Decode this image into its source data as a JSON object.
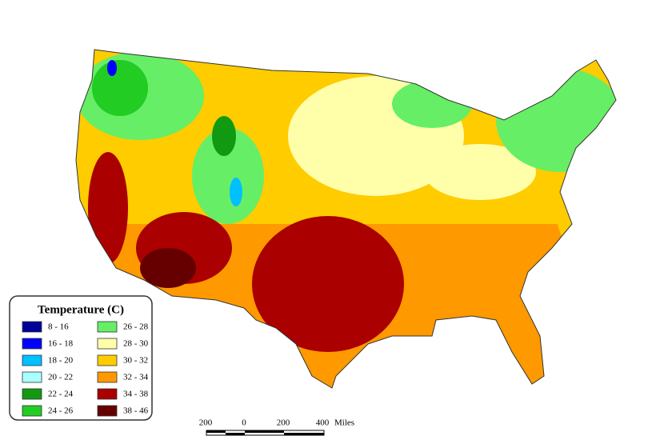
{
  "legend": {
    "title": "Temperature (C)",
    "items": [
      {
        "label": "8 - 16",
        "color": "#000099"
      },
      {
        "label": "16 - 18",
        "color": "#0000ff"
      },
      {
        "label": "18 - 20",
        "color": "#00c0ff"
      },
      {
        "label": "20 - 22",
        "color": "#aaffff"
      },
      {
        "label": "22 - 24",
        "color": "#119911"
      },
      {
        "label": "24 - 26",
        "color": "#22cc22"
      },
      {
        "label": "26 - 28",
        "color": "#66ee66"
      },
      {
        "label": "28 - 30",
        "color": "#ffffaa"
      },
      {
        "label": "30 - 32",
        "color": "#ffcc00"
      },
      {
        "label": "32 - 34",
        "color": "#ff9900"
      },
      {
        "label": "34 - 38",
        "color": "#aa0000"
      },
      {
        "label": "38 - 46",
        "color": "#660000"
      }
    ]
  },
  "scale_bar": {
    "labels": [
      "200",
      "0",
      "200",
      "400"
    ],
    "unit": "Miles"
  }
}
